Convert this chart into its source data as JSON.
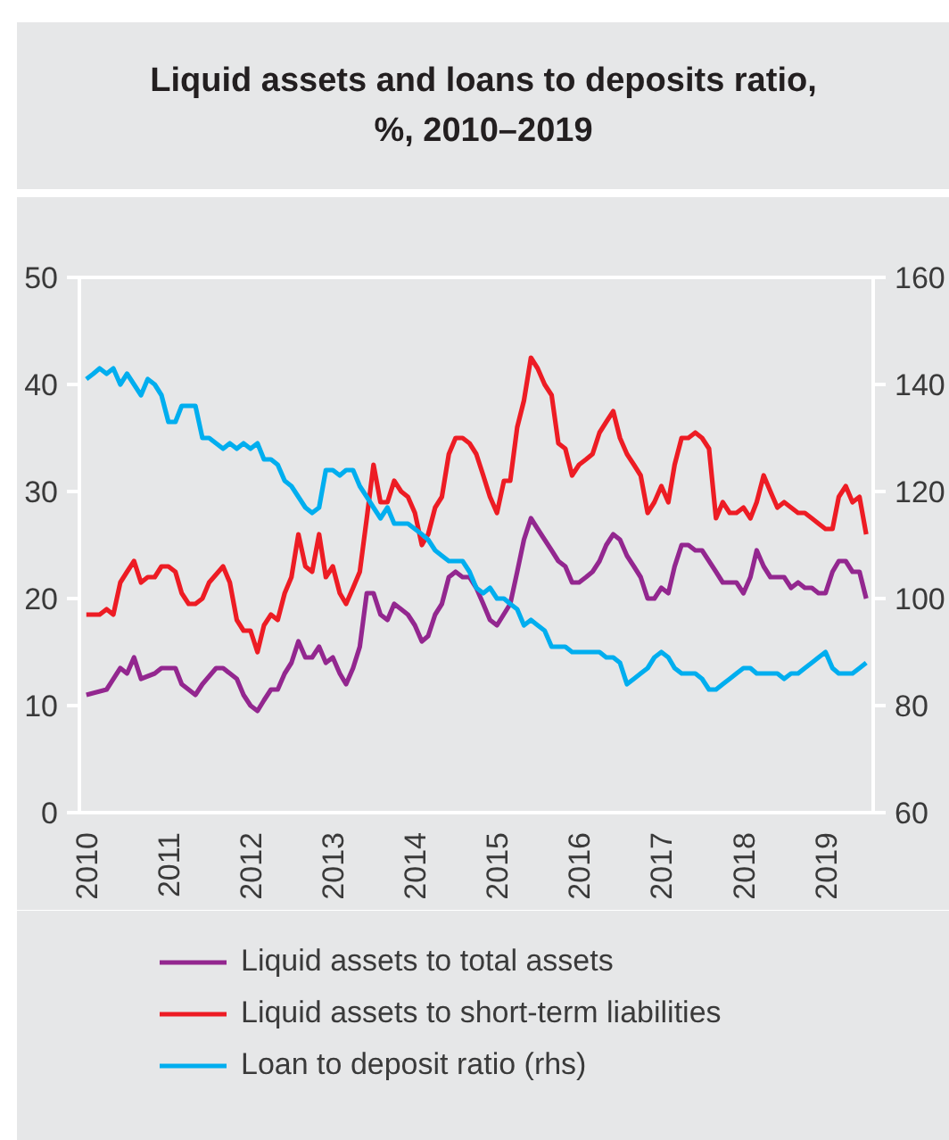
{
  "chart_data": {
    "type": "line",
    "title": "Liquid assets and loans to deposits ratio, %, 2010–2019",
    "xlim": [
      "2009-12",
      "2019-08"
    ],
    "xticks": [
      "2010",
      "2011",
      "2012",
      "2013",
      "2014",
      "2015",
      "2016",
      "2017",
      "2018",
      "2019"
    ],
    "ylim": [
      0,
      50
    ],
    "yticks": [
      0,
      10,
      20,
      30,
      40,
      50
    ],
    "y2lim": [
      60,
      160
    ],
    "y2ticks": [
      60,
      80,
      100,
      120,
      140,
      160
    ],
    "legend": "bottom",
    "series": [
      {
        "name": "Liquid assets to total assets",
        "color": "#93278f",
        "x": [
          "2010-01",
          "2010-04",
          "2010-06",
          "2010-07",
          "2010-08",
          "2010-09",
          "2010-11",
          "2010-12",
          "2011-02",
          "2011-03",
          "2011-05",
          "2011-06",
          "2011-08",
          "2011-09",
          "2011-11",
          "2011-12",
          "2012-01",
          "2012-02",
          "2012-03",
          "2012-04",
          "2012-05",
          "2012-06",
          "2012-07",
          "2012-08",
          "2012-09",
          "2012-10",
          "2012-11",
          "2012-12",
          "2013-01",
          "2013-02",
          "2013-03",
          "2013-04",
          "2013-05",
          "2013-06",
          "2013-07",
          "2013-08",
          "2013-09",
          "2013-10",
          "2013-11",
          "2013-12",
          "2014-01",
          "2014-02",
          "2014-03",
          "2014-04",
          "2014-05",
          "2014-06",
          "2014-07",
          "2014-08",
          "2014-09",
          "2014-10",
          "2014-11",
          "2014-12",
          "2015-01",
          "2015-03",
          "2015-04",
          "2015-05",
          "2015-06",
          "2015-07",
          "2015-08",
          "2015-09",
          "2015-10",
          "2015-11",
          "2015-12",
          "2016-01",
          "2016-02",
          "2016-03",
          "2016-04",
          "2016-05",
          "2016-06",
          "2016-07",
          "2016-08",
          "2016-09",
          "2016-10",
          "2016-11",
          "2016-12",
          "2017-01",
          "2017-02",
          "2017-03",
          "2017-04",
          "2017-05",
          "2017-06",
          "2017-07",
          "2017-08",
          "2017-09",
          "2017-10",
          "2017-11",
          "2017-12",
          "2018-01",
          "2018-02",
          "2018-03",
          "2018-04",
          "2018-05",
          "2018-06",
          "2018-07",
          "2018-08",
          "2018-09",
          "2018-10",
          "2018-11",
          "2018-12",
          "2019-01",
          "2019-02",
          "2019-03",
          "2019-04",
          "2019-05",
          "2019-06",
          "2019-07"
        ],
        "values": [
          11,
          11.5,
          13.5,
          13,
          14.5,
          12.5,
          13,
          13.5,
          13.5,
          12,
          11,
          12,
          13.5,
          13.5,
          12.5,
          11,
          10,
          9.5,
          10.5,
          11.5,
          11.5,
          13,
          14,
          16,
          14.5,
          14.5,
          15.5,
          14,
          14.5,
          13,
          12,
          13.5,
          15.5,
          20.5,
          20.5,
          18.5,
          18,
          19.5,
          19,
          18.5,
          17.5,
          16,
          16.5,
          18.5,
          19.5,
          22,
          22.5,
          22,
          22,
          21,
          19.5,
          18,
          17.5,
          19.5,
          22.5,
          25.5,
          27.5,
          26.5,
          25.5,
          24.5,
          23.5,
          23,
          21.5,
          21.5,
          22,
          22.5,
          23.5,
          25,
          26,
          25.5,
          24,
          23,
          22,
          20,
          20,
          21,
          20.5,
          23,
          25,
          25,
          24.5,
          24.5,
          23.5,
          22.5,
          21.5,
          21.5,
          21.5,
          20.5,
          22,
          24.5,
          23,
          22,
          22,
          22,
          21,
          21.5,
          21,
          21,
          20.5,
          20.5,
          22.5,
          23.5,
          23.5,
          22.5,
          22.5,
          20
        ]
      },
      {
        "name": "Liquid assets to short-term liabilities",
        "color": "#ed1c24",
        "x": [
          "2010-01",
          "2010-03",
          "2010-04",
          "2010-05",
          "2010-06",
          "2010-07",
          "2010-08",
          "2010-09",
          "2010-10",
          "2010-11",
          "2010-12",
          "2011-01",
          "2011-02",
          "2011-03",
          "2011-04",
          "2011-05",
          "2011-06",
          "2011-07",
          "2011-09",
          "2011-10",
          "2011-11",
          "2011-12",
          "2012-01",
          "2012-02",
          "2012-03",
          "2012-04",
          "2012-05",
          "2012-06",
          "2012-07",
          "2012-08",
          "2012-09",
          "2012-10",
          "2012-11",
          "2012-12",
          "2013-01",
          "2013-02",
          "2013-03",
          "2013-04",
          "2013-05",
          "2013-06",
          "2013-07",
          "2013-08",
          "2013-09",
          "2013-10",
          "2013-11",
          "2013-12",
          "2014-01",
          "2014-02",
          "2014-03",
          "2014-04",
          "2014-05",
          "2014-06",
          "2014-07",
          "2014-08",
          "2014-09",
          "2014-10",
          "2014-11",
          "2014-12",
          "2015-01",
          "2015-02",
          "2015-03",
          "2015-04",
          "2015-05",
          "2015-06",
          "2015-07",
          "2015-08",
          "2015-09",
          "2015-10",
          "2015-11",
          "2015-12",
          "2016-01",
          "2016-02",
          "2016-03",
          "2016-04",
          "2016-05",
          "2016-06",
          "2016-07",
          "2016-08",
          "2016-09",
          "2016-10",
          "2016-11",
          "2016-12",
          "2017-01",
          "2017-02",
          "2017-03",
          "2017-04",
          "2017-05",
          "2017-06",
          "2017-07",
          "2017-08",
          "2017-09",
          "2017-10",
          "2017-11",
          "2017-12",
          "2018-01",
          "2018-02",
          "2018-03",
          "2018-04",
          "2018-05",
          "2018-06",
          "2018-07",
          "2018-08",
          "2018-09",
          "2018-10",
          "2018-11",
          "2018-12",
          "2019-01",
          "2019-02",
          "2019-03",
          "2019-04",
          "2019-05",
          "2019-06",
          "2019-07"
        ],
        "values": [
          18.5,
          18.5,
          19,
          18.5,
          21.5,
          22.5,
          23.5,
          21.5,
          22,
          22,
          23,
          23,
          22.5,
          20.5,
          19.5,
          19.5,
          20,
          21.5,
          23,
          21.5,
          18,
          17,
          17,
          15,
          17.5,
          18.5,
          18,
          20.5,
          22,
          26,
          23,
          22.5,
          26,
          22,
          23,
          20.5,
          19.5,
          21,
          22.5,
          27.5,
          32.5,
          29,
          29,
          31,
          30,
          29.5,
          28,
          25,
          26,
          28.5,
          29.5,
          33.5,
          35,
          35,
          34.5,
          33.5,
          31.5,
          29.5,
          28,
          31,
          31,
          36,
          38.5,
          42.5,
          41.5,
          40,
          39,
          34.5,
          34,
          31.5,
          32.5,
          33,
          33.5,
          35.5,
          36.5,
          37.5,
          35,
          33.5,
          32.5,
          31.5,
          28,
          29,
          30.5,
          29,
          32.5,
          35,
          35,
          35.5,
          35,
          34,
          27.5,
          29,
          28,
          28,
          28.5,
          27.5,
          29,
          31.5,
          30,
          28.5,
          29,
          28.5,
          28,
          28,
          27.5,
          27,
          26.5,
          26.5,
          29.5,
          30.5,
          29,
          29.5,
          26
        ]
      },
      {
        "name": "Loan to deposit ratio (rhs)",
        "color": "#00aeef",
        "axis": "y2",
        "x": [
          "2010-01",
          "2010-02",
          "2010-03",
          "2010-04",
          "2010-05",
          "2010-06",
          "2010-07",
          "2010-08",
          "2010-09",
          "2010-10",
          "2010-11",
          "2010-12",
          "2011-01",
          "2011-02",
          "2011-03",
          "2011-04",
          "2011-05",
          "2011-06",
          "2011-07",
          "2011-08",
          "2011-09",
          "2011-10",
          "2011-11",
          "2011-12",
          "2012-01",
          "2012-02",
          "2012-03",
          "2012-04",
          "2012-05",
          "2012-06",
          "2012-07",
          "2012-08",
          "2012-09",
          "2012-10",
          "2012-11",
          "2012-12",
          "2013-01",
          "2013-02",
          "2013-03",
          "2013-04",
          "2013-05",
          "2013-06",
          "2013-07",
          "2013-08",
          "2013-09",
          "2013-10",
          "2013-11",
          "2013-12",
          "2014-01",
          "2014-02",
          "2014-03",
          "2014-04",
          "2014-05",
          "2014-06",
          "2014-07",
          "2014-08",
          "2014-09",
          "2014-10",
          "2014-11",
          "2014-12",
          "2015-01",
          "2015-02",
          "2015-03",
          "2015-04",
          "2015-05",
          "2015-06",
          "2015-07",
          "2015-08",
          "2015-09",
          "2015-10",
          "2015-11",
          "2015-12",
          "2016-01",
          "2016-02",
          "2016-03",
          "2016-04",
          "2016-05",
          "2016-06",
          "2016-07",
          "2016-08",
          "2016-09",
          "2016-10",
          "2016-11",
          "2016-12",
          "2017-01",
          "2017-02",
          "2017-03",
          "2017-04",
          "2017-05",
          "2017-06",
          "2017-07",
          "2017-08",
          "2017-09",
          "2017-10",
          "2017-11",
          "2017-12",
          "2018-01",
          "2018-02",
          "2018-03",
          "2018-04",
          "2018-05",
          "2018-06",
          "2018-07",
          "2018-08",
          "2018-09",
          "2018-10",
          "2018-11",
          "2018-12",
          "2019-01",
          "2019-02",
          "2019-03",
          "2019-04",
          "2019-05",
          "2019-06",
          "2019-07"
        ],
        "values": [
          141,
          142,
          143,
          142,
          143,
          140,
          142,
          140,
          138,
          141,
          140,
          138,
          133,
          133,
          136,
          136,
          136,
          130,
          130,
          129,
          128,
          129,
          128,
          129,
          128,
          129,
          126,
          126,
          125,
          122,
          121,
          119,
          117,
          116,
          117,
          124,
          124,
          123,
          124,
          124,
          121,
          119,
          117,
          115,
          117,
          114,
          114,
          114,
          113,
          112,
          111,
          109,
          108,
          107,
          107,
          107,
          105,
          102,
          101,
          102,
          100,
          100,
          99,
          98,
          95,
          96,
          95,
          94,
          91,
          91,
          91,
          90,
          90,
          90,
          90,
          90,
          89,
          89,
          88,
          84,
          85,
          86,
          87,
          89,
          90,
          89,
          87,
          86,
          86,
          86,
          85,
          83,
          83,
          84,
          85,
          86,
          87,
          87,
          86,
          86,
          86,
          86,
          85,
          86,
          86,
          87,
          88,
          89,
          90,
          87,
          86,
          86,
          86,
          87,
          88
        ]
      }
    ]
  }
}
